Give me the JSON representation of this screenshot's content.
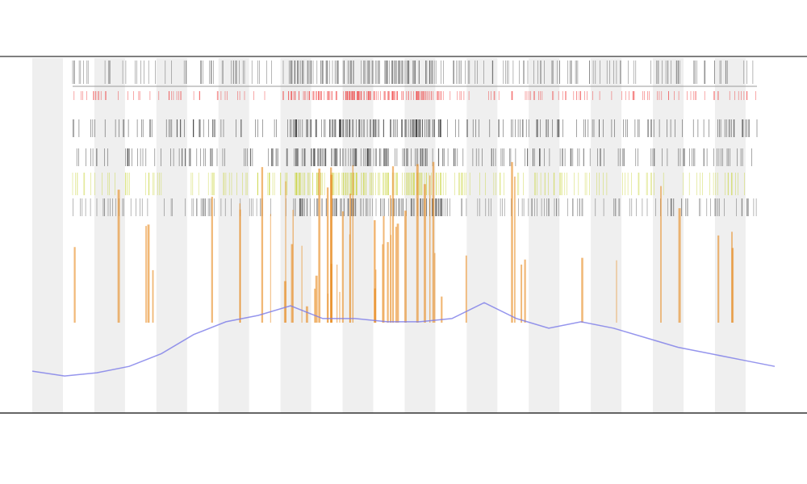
{
  "chart_data": {
    "type": "line",
    "categories": [
      null,
      null,
      null,
      null,
      null,
      null,
      null,
      null,
      null,
      null,
      null,
      null,
      null,
      null,
      null,
      null,
      null,
      null,
      null,
      null,
      null,
      null,
      null,
      null
    ],
    "series": [
      {
        "color": "#7b7be8",
        "values": [
          2.5,
          1,
          2,
          4,
          8,
          14,
          18,
          20,
          23,
          19,
          19,
          18,
          18,
          19,
          24,
          19,
          16,
          18,
          16,
          13,
          10,
          8,
          6,
          4
        ]
      }
    ],
    "ylim": [
      0,
      100
    ]
  }
}
